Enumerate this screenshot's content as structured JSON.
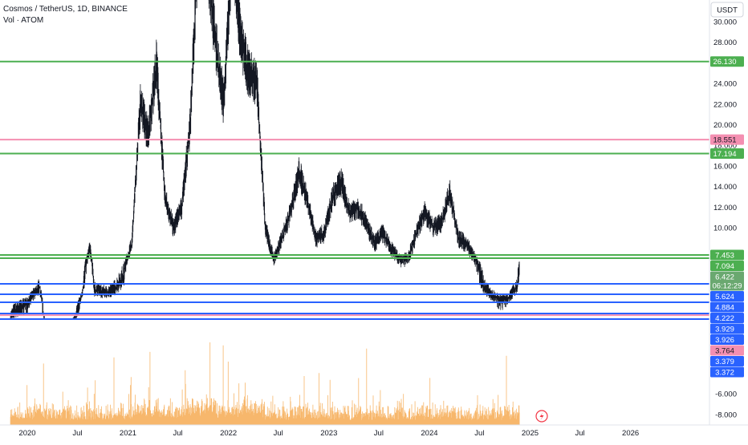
{
  "header": {
    "symbol_line": "Cosmos / TetherUS, 1D, BINANCE",
    "volume_line": "Vol · ATOM"
  },
  "axis": {
    "currency_button": "USDT",
    "countdown": "06:12:29"
  },
  "colors": {
    "green_line": "#4caf50",
    "blue_line": "#2962ff",
    "pink_line": "#f48fb1",
    "candle": "#131722",
    "volume": "#f7b76c",
    "price_tag": "#6aa870"
  },
  "chart_data": {
    "type": "line",
    "price_axis_labels": [
      "30.000",
      "28.000",
      "26.000",
      "24.000",
      "22.000",
      "20.000",
      "18.000",
      "16.000",
      "14.000",
      "12.000",
      "10.000"
    ],
    "volume_axis_labels": [
      "-4.000",
      "-6.000",
      "-8.000"
    ],
    "x_tick_labels": [
      "2020",
      "Jul",
      "2021",
      "Jul",
      "2022",
      "Jul",
      "2023",
      "Jul",
      "2024",
      "Jul",
      "2025",
      "Jul",
      "2026"
    ],
    "last_price": 6.422,
    "horizontal_levels": [
      {
        "value": 26.13,
        "label": "26.130",
        "color": "green"
      },
      {
        "value": 18.551,
        "label": "18.551",
        "color": "pink"
      },
      {
        "value": 17.194,
        "label": "17.194",
        "color": "green"
      },
      {
        "value": 7.453,
        "label": "7.453",
        "color": "green"
      },
      {
        "value": 7.094,
        "label": "7.094",
        "color": "green"
      },
      {
        "value": 5.624,
        "label": "5.624",
        "color": "blue"
      },
      {
        "value": 4.884,
        "label": "4.884",
        "color": "blue"
      },
      {
        "value": 4.222,
        "label": "4.222",
        "color": "blue"
      },
      {
        "value": 3.929,
        "label": "3.929",
        "color": "blue"
      },
      {
        "value": 3.926,
        "label": "3.926",
        "color": "blue"
      },
      {
        "value": 3.764,
        "label": "3.764",
        "color": "pink"
      },
      {
        "value": 3.379,
        "label": "3.379",
        "color": "blue"
      },
      {
        "value": 3.372,
        "label": "3.372",
        "color": "blue"
      }
    ],
    "price_path": [
      [
        "2019-11-01",
        3.7
      ],
      [
        "2019-12-01",
        4.0
      ],
      [
        "2020-01-01",
        4.3
      ],
      [
        "2020-02-15",
        5.4
      ],
      [
        "2020-03-13",
        2.3
      ],
      [
        "2020-04-15",
        2.6
      ],
      [
        "2020-05-15",
        2.9
      ],
      [
        "2020-06-15",
        3.2
      ],
      [
        "2020-07-15",
        4.6
      ],
      [
        "2020-08-15",
        8.1
      ],
      [
        "2020-09-01",
        5.2
      ],
      [
        "2020-10-15",
        5.0
      ],
      [
        "2020-11-15",
        5.3
      ],
      [
        "2020-12-15",
        5.9
      ],
      [
        "2021-01-15",
        8.5
      ],
      [
        "2021-02-15",
        22.0
      ],
      [
        "2021-03-15",
        19.0
      ],
      [
        "2021-04-15",
        26.0
      ],
      [
        "2021-05-15",
        13.0
      ],
      [
        "2021-06-15",
        10.0
      ],
      [
        "2021-07-15",
        12.0
      ],
      [
        "2021-08-15",
        20.0
      ],
      [
        "2021-09-20",
        42.0
      ],
      [
        "2021-10-20",
        35.0
      ],
      [
        "2021-11-15",
        28.0
      ],
      [
        "2021-12-15",
        22.0
      ],
      [
        "2022-01-15",
        38.0
      ],
      [
        "2022-02-15",
        28.0
      ],
      [
        "2022-03-15",
        25.0
      ],
      [
        "2022-04-15",
        24.0
      ],
      [
        "2022-05-15",
        10.0
      ],
      [
        "2022-06-15",
        7.0
      ],
      [
        "2022-07-15",
        9.0
      ],
      [
        "2022-08-15",
        11.5
      ],
      [
        "2022-09-15",
        15.5
      ],
      [
        "2022-10-15",
        12.5
      ],
      [
        "2022-11-15",
        9.0
      ],
      [
        "2022-12-15",
        9.5
      ],
      [
        "2023-01-15",
        13.0
      ],
      [
        "2023-02-15",
        14.5
      ],
      [
        "2023-03-15",
        11.5
      ],
      [
        "2023-04-15",
        12.0
      ],
      [
        "2023-05-15",
        10.5
      ],
      [
        "2023-06-15",
        8.5
      ],
      [
        "2023-07-15",
        9.5
      ],
      [
        "2023-08-15",
        8.0
      ],
      [
        "2023-09-15",
        7.0
      ],
      [
        "2023-10-15",
        7.0
      ],
      [
        "2023-11-15",
        9.5
      ],
      [
        "2023-12-15",
        11.5
      ],
      [
        "2024-01-15",
        10.0
      ],
      [
        "2024-02-15",
        10.5
      ],
      [
        "2024-03-15",
        13.5
      ],
      [
        "2024-04-15",
        9.0
      ],
      [
        "2024-05-15",
        8.5
      ],
      [
        "2024-06-15",
        7.0
      ],
      [
        "2024-07-15",
        5.5
      ],
      [
        "2024-08-15",
        4.8
      ],
      [
        "2024-09-15",
        4.4
      ],
      [
        "2024-10-15",
        4.6
      ],
      [
        "2024-11-15",
        5.5
      ],
      [
        "2024-11-24",
        6.422
      ]
    ]
  }
}
